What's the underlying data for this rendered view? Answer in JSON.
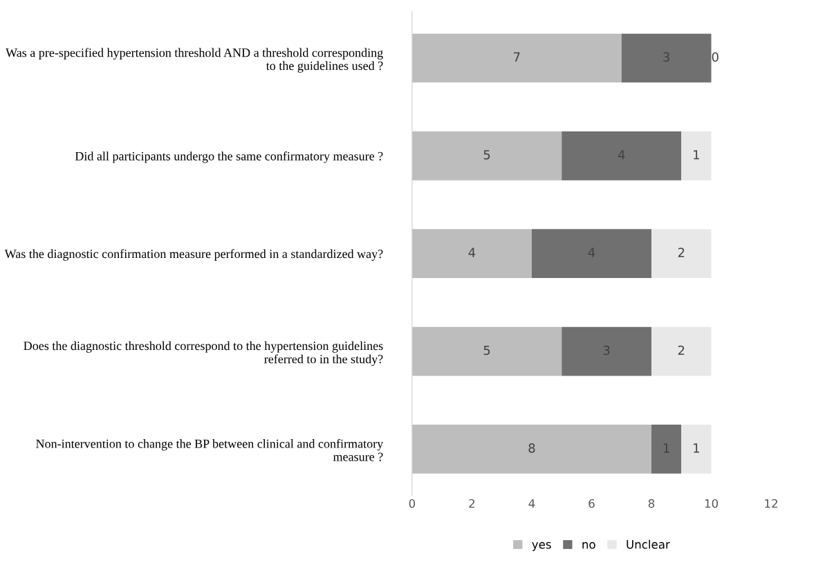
{
  "chart_data": {
    "type": "bar",
    "orientation": "horizontal",
    "stacked": true,
    "categories": [
      "Was a pre-specified hypertension threshold AND a threshold corresponding to the guidelines used ?",
      "Did all participants undergo the same confirmatory measure ?",
      "Was the diagnostic confirmation measure performed in a standardized way?",
      "Does the diagnostic threshold correspond to the hypertension guidelines referred to in the study?",
      "Non-intervention to change the BP between clinical and confirmatory measure ?"
    ],
    "series": [
      {
        "name": "yes",
        "color": "#bdbdbd",
        "values": [
          7,
          5,
          4,
          5,
          8
        ]
      },
      {
        "name": "no",
        "color": "#707070",
        "values": [
          3,
          4,
          4,
          3,
          1
        ]
      },
      {
        "name": "Unclear",
        "color": "#e8e8e8",
        "values": [
          0,
          1,
          2,
          2,
          1
        ]
      }
    ],
    "xlim": [
      0,
      12
    ],
    "xticks": [
      0,
      2,
      4,
      6,
      8,
      10,
      12
    ],
    "data_labels": true,
    "grid": false,
    "legend": "bottom"
  }
}
